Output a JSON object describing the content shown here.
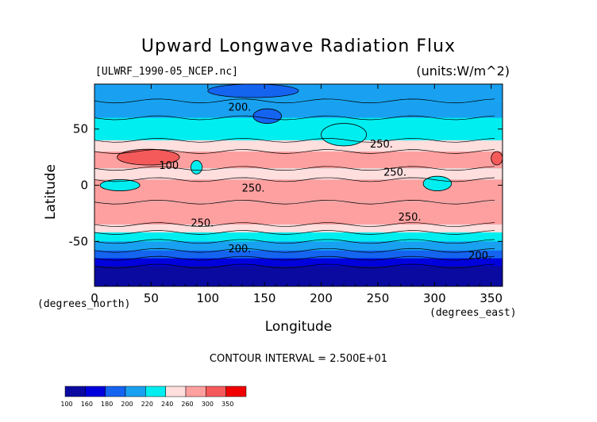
{
  "chart_data": {
    "type": "heatmap",
    "title": "Upward Longwave Radiation Flux",
    "source_label": "[ULWRF_1990-05_NCEP.nc]",
    "units_label": "(units:W/m^2)",
    "xlabel": "Longitude",
    "ylabel": "Latitude",
    "x_unit_label": "(degrees_east)",
    "y_unit_label": "(degrees_north)",
    "xlim": [
      0,
      360
    ],
    "ylim": [
      -90,
      90
    ],
    "x_ticks": [
      "0",
      "50",
      "100",
      "150",
      "200",
      "250",
      "300",
      "350"
    ],
    "x_tick_values": [
      0,
      50,
      100,
      150,
      200,
      250,
      300,
      350
    ],
    "y_ticks": [
      "50",
      "0",
      "-50"
    ],
    "y_tick_values": [
      50,
      0,
      -50
    ],
    "contour_interval_text": "CONTOUR INTERVAL = 2.500E+01",
    "contour_labels": [
      {
        "text": "200.",
        "x": 118,
        "y": 70
      },
      {
        "text": "250.",
        "x": 243,
        "y": 37
      },
      {
        "text": "250.",
        "x": 255,
        "y": 12
      },
      {
        "text": "250.",
        "x": 130,
        "y": -2
      },
      {
        "text": "250.",
        "x": 268,
        "y": -28
      },
      {
        "text": "250.",
        "x": 85,
        "y": -33
      },
      {
        "text": "200.",
        "x": 118,
        "y": -56
      },
      {
        "text": "200.",
        "x": 330,
        "y": -62
      },
      {
        "text": "100",
        "x": 57,
        "y": 18
      }
    ],
    "colorbar": {
      "levels": [
        "100",
        "160",
        "180",
        "200",
        "220",
        "240",
        "260",
        "300",
        "350"
      ],
      "colors": [
        "#0a0aa0",
        "#0000dd",
        "#1464f0",
        "#19a0f0",
        "#00eef0",
        "#ffdede",
        "#ffa0a0",
        "#f55a5a",
        "#f00000"
      ]
    },
    "zonal_bands": [
      {
        "lat_range": [
          75,
          90
        ],
        "value": 205
      },
      {
        "lat_range": [
          60,
          75
        ],
        "value": 215
      },
      {
        "lat_range": [
          40,
          60
        ],
        "value": 225
      },
      {
        "lat_range": [
          30,
          40
        ],
        "value": 245
      },
      {
        "lat_range": [
          15,
          30
        ],
        "value": 275
      },
      {
        "lat_range": [
          5,
          15
        ],
        "value": 250
      },
      {
        "lat_range": [
          -15,
          5
        ],
        "value": 265
      },
      {
        "lat_range": [
          -35,
          -15
        ],
        "value": 270
      },
      {
        "lat_range": [
          -42,
          -35
        ],
        "value": 250
      },
      {
        "lat_range": [
          -50,
          -42
        ],
        "value": 235
      },
      {
        "lat_range": [
          -58,
          -50
        ],
        "value": 215
      },
      {
        "lat_range": [
          -65,
          -58
        ],
        "value": 195
      },
      {
        "lat_range": [
          -72,
          -65
        ],
        "value": 175
      },
      {
        "lat_range": [
          -90,
          -72
        ],
        "value": 140
      }
    ],
    "features": [
      {
        "lon": [
          20,
          75
        ],
        "lat": [
          18,
          32
        ],
        "value": 310
      },
      {
        "lon": [
          350,
          360
        ],
        "lat": [
          18,
          30
        ],
        "value": 310
      },
      {
        "lon": [
          85,
          95
        ],
        "lat": [
          10,
          22
        ],
        "value": 230
      },
      {
        "lon": [
          290,
          315
        ],
        "lat": [
          -5,
          8
        ],
        "value": 230
      },
      {
        "lon": [
          5,
          40
        ],
        "lat": [
          -5,
          5
        ],
        "value": 230
      },
      {
        "lon": [
          200,
          240
        ],
        "lat": [
          35,
          55
        ],
        "value": 230
      },
      {
        "lon": [
          140,
          165
        ],
        "lat": [
          55,
          68
        ],
        "value": 185
      },
      {
        "lon": [
          100,
          180
        ],
        "lat": [
          78,
          90
        ],
        "value": 190
      }
    ]
  }
}
